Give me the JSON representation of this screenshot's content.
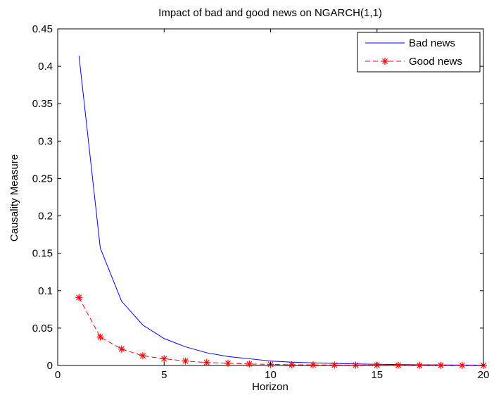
{
  "chart_data": {
    "type": "line",
    "title": "Impact of bad and good news on NGARCH(1,1)",
    "xlabel": "Horizon",
    "ylabel": "Causality Measure",
    "xlim": [
      0,
      20
    ],
    "ylim": [
      0,
      0.45
    ],
    "xticks": [
      0,
      5,
      10,
      15,
      20
    ],
    "yticks": [
      0,
      0.05,
      0.1,
      0.15,
      0.2,
      0.25,
      0.3,
      0.35,
      0.4,
      0.45
    ],
    "x_tick_labels": [
      "0",
      "5",
      "10",
      "15",
      "20"
    ],
    "y_tick_labels": [
      "0",
      "0.05",
      "0.1",
      "0.15",
      "0.2",
      "0.25",
      "0.3",
      "0.35",
      "0.4",
      "0.45"
    ],
    "grid": false,
    "legend_position": "top-right",
    "x": [
      1,
      2,
      3,
      4,
      5,
      6,
      7,
      8,
      9,
      10,
      11,
      12,
      13,
      14,
      15,
      16,
      17,
      18,
      19,
      20
    ],
    "series": [
      {
        "name": "Bad news",
        "color": "#0000ff",
        "line_style": "solid",
        "marker": "none",
        "values": [
          0.414,
          0.157,
          0.086,
          0.054,
          0.036,
          0.025,
          0.017,
          0.012,
          0.009,
          0.006,
          0.0045,
          0.0035,
          0.0027,
          0.0021,
          0.0016,
          0.0013,
          0.001,
          0.0008,
          0.0006,
          0.0005
        ]
      },
      {
        "name": "Good news",
        "color": "#ff0000",
        "line_style": "dashed",
        "marker": "asterisk",
        "values": [
          0.091,
          0.038,
          0.022,
          0.013,
          0.009,
          0.006,
          0.004,
          0.003,
          0.002,
          0.0015,
          0.001,
          0.0008,
          0.0006,
          0.0005,
          0.0004,
          0.0003,
          0.0002,
          0.0002,
          0.0001,
          0.0001
        ]
      }
    ]
  }
}
